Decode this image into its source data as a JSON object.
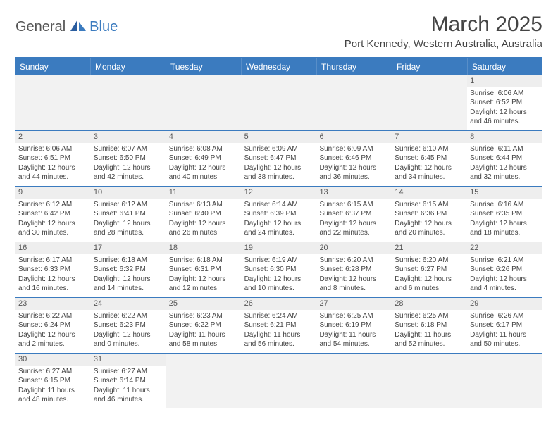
{
  "logo": {
    "text1": "General",
    "text2": "Blue"
  },
  "title": "March 2025",
  "location": "Port Kennedy, Western Australia, Australia",
  "colors": {
    "accent": "#3b7bbf",
    "header_text": "#ffffff",
    "day_bar": "#eeeeee",
    "empty_bg": "#f2f2f2",
    "text": "#444444",
    "border": "#3b7bbf"
  },
  "weekdays": [
    "Sunday",
    "Monday",
    "Tuesday",
    "Wednesday",
    "Thursday",
    "Friday",
    "Saturday"
  ],
  "weeks": [
    [
      null,
      null,
      null,
      null,
      null,
      null,
      {
        "n": "1",
        "sr": "6:06 AM",
        "ss": "6:52 PM",
        "dl": "12 hours and 46 minutes."
      }
    ],
    [
      {
        "n": "2",
        "sr": "6:06 AM",
        "ss": "6:51 PM",
        "dl": "12 hours and 44 minutes."
      },
      {
        "n": "3",
        "sr": "6:07 AM",
        "ss": "6:50 PM",
        "dl": "12 hours and 42 minutes."
      },
      {
        "n": "4",
        "sr": "6:08 AM",
        "ss": "6:49 PM",
        "dl": "12 hours and 40 minutes."
      },
      {
        "n": "5",
        "sr": "6:09 AM",
        "ss": "6:47 PM",
        "dl": "12 hours and 38 minutes."
      },
      {
        "n": "6",
        "sr": "6:09 AM",
        "ss": "6:46 PM",
        "dl": "12 hours and 36 minutes."
      },
      {
        "n": "7",
        "sr": "6:10 AM",
        "ss": "6:45 PM",
        "dl": "12 hours and 34 minutes."
      },
      {
        "n": "8",
        "sr": "6:11 AM",
        "ss": "6:44 PM",
        "dl": "12 hours and 32 minutes."
      }
    ],
    [
      {
        "n": "9",
        "sr": "6:12 AM",
        "ss": "6:42 PM",
        "dl": "12 hours and 30 minutes."
      },
      {
        "n": "10",
        "sr": "6:12 AM",
        "ss": "6:41 PM",
        "dl": "12 hours and 28 minutes."
      },
      {
        "n": "11",
        "sr": "6:13 AM",
        "ss": "6:40 PM",
        "dl": "12 hours and 26 minutes."
      },
      {
        "n": "12",
        "sr": "6:14 AM",
        "ss": "6:39 PM",
        "dl": "12 hours and 24 minutes."
      },
      {
        "n": "13",
        "sr": "6:15 AM",
        "ss": "6:37 PM",
        "dl": "12 hours and 22 minutes."
      },
      {
        "n": "14",
        "sr": "6:15 AM",
        "ss": "6:36 PM",
        "dl": "12 hours and 20 minutes."
      },
      {
        "n": "15",
        "sr": "6:16 AM",
        "ss": "6:35 PM",
        "dl": "12 hours and 18 minutes."
      }
    ],
    [
      {
        "n": "16",
        "sr": "6:17 AM",
        "ss": "6:33 PM",
        "dl": "12 hours and 16 minutes."
      },
      {
        "n": "17",
        "sr": "6:18 AM",
        "ss": "6:32 PM",
        "dl": "12 hours and 14 minutes."
      },
      {
        "n": "18",
        "sr": "6:18 AM",
        "ss": "6:31 PM",
        "dl": "12 hours and 12 minutes."
      },
      {
        "n": "19",
        "sr": "6:19 AM",
        "ss": "6:30 PM",
        "dl": "12 hours and 10 minutes."
      },
      {
        "n": "20",
        "sr": "6:20 AM",
        "ss": "6:28 PM",
        "dl": "12 hours and 8 minutes."
      },
      {
        "n": "21",
        "sr": "6:20 AM",
        "ss": "6:27 PM",
        "dl": "12 hours and 6 minutes."
      },
      {
        "n": "22",
        "sr": "6:21 AM",
        "ss": "6:26 PM",
        "dl": "12 hours and 4 minutes."
      }
    ],
    [
      {
        "n": "23",
        "sr": "6:22 AM",
        "ss": "6:24 PM",
        "dl": "12 hours and 2 minutes."
      },
      {
        "n": "24",
        "sr": "6:22 AM",
        "ss": "6:23 PM",
        "dl": "12 hours and 0 minutes."
      },
      {
        "n": "25",
        "sr": "6:23 AM",
        "ss": "6:22 PM",
        "dl": "11 hours and 58 minutes."
      },
      {
        "n": "26",
        "sr": "6:24 AM",
        "ss": "6:21 PM",
        "dl": "11 hours and 56 minutes."
      },
      {
        "n": "27",
        "sr": "6:25 AM",
        "ss": "6:19 PM",
        "dl": "11 hours and 54 minutes."
      },
      {
        "n": "28",
        "sr": "6:25 AM",
        "ss": "6:18 PM",
        "dl": "11 hours and 52 minutes."
      },
      {
        "n": "29",
        "sr": "6:26 AM",
        "ss": "6:17 PM",
        "dl": "11 hours and 50 minutes."
      }
    ],
    [
      {
        "n": "30",
        "sr": "6:27 AM",
        "ss": "6:15 PM",
        "dl": "11 hours and 48 minutes."
      },
      {
        "n": "31",
        "sr": "6:27 AM",
        "ss": "6:14 PM",
        "dl": "11 hours and 46 minutes."
      },
      null,
      null,
      null,
      null,
      null
    ]
  ],
  "labels": {
    "sunrise": "Sunrise:",
    "sunset": "Sunset:",
    "daylight": "Daylight:"
  }
}
